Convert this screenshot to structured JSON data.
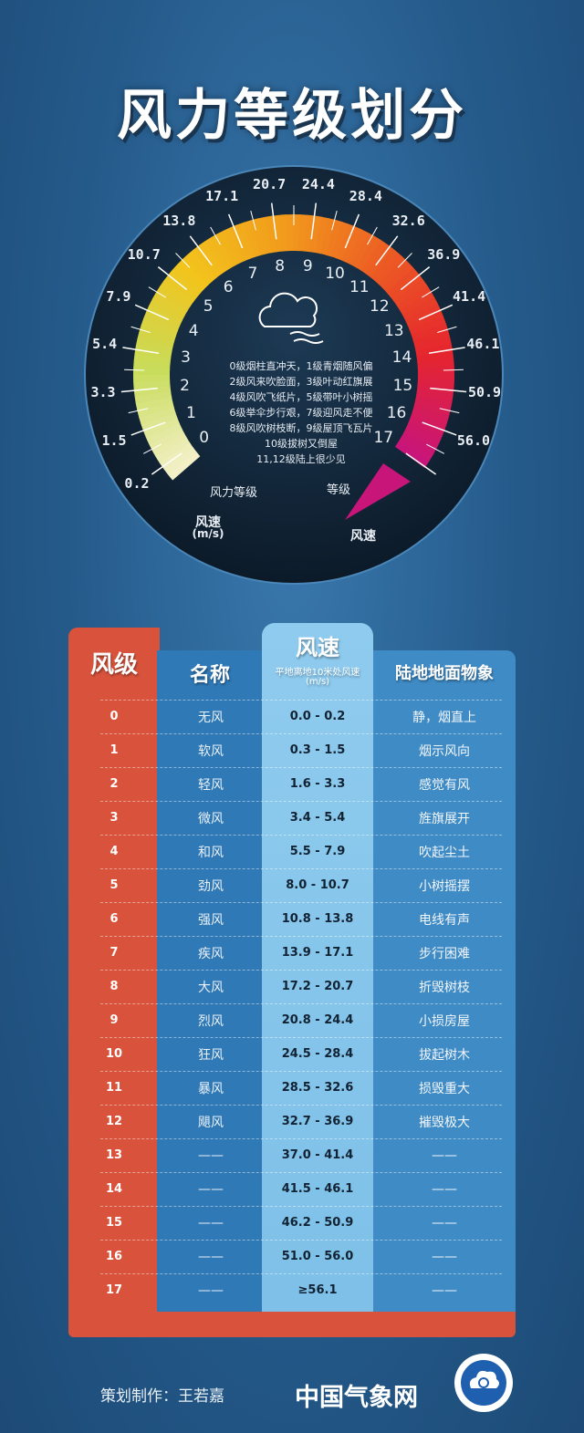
{
  "title": "风力等级划分",
  "gauge": {
    "speeds": [
      "0.2",
      "1.5",
      "3.3",
      "5.4",
      "7.9",
      "10.7",
      "13.8",
      "17.1",
      "20.7",
      "24.4",
      "28.4",
      "32.6",
      "36.9",
      "41.4",
      "46.1",
      "50.9",
      "56.0"
    ],
    "levels": [
      "0",
      "1",
      "2",
      "3",
      "4",
      "5",
      "6",
      "7",
      "8",
      "9",
      "10",
      "11",
      "12",
      "13",
      "14",
      "15",
      "16",
      "17"
    ],
    "level_label": "风力等级",
    "level_label_right": "等级",
    "speed_label": "风速",
    "speed_unit": "(m/s)",
    "speed_label_right": "风速",
    "icon": "cloud-wind-icon",
    "description": [
      "0级烟柱直冲天，1级青烟随风偏",
      "2级风来吹脸面，3级叶动红旗展",
      "4级风吹飞纸片，5级带叶小树摇",
      "6级举伞步行艰，7级迎风走不便",
      "8级风吹树枝断，9级屋顶飞瓦片",
      "10级拔树又倒屋",
      "11,12级陆上很少见"
    ],
    "colors": [
      "#f3f0c8",
      "#c8dc5a",
      "#f2c41c",
      "#f29a1c",
      "#ec5a24",
      "#e5252e",
      "#c8157a"
    ]
  },
  "table": {
    "headers": {
      "level": "风级",
      "name": "名称",
      "speed": "风速",
      "speed_sub": "平地离地10米处风速",
      "speed_unit": "(m/s)",
      "land": "陆地地面物象"
    },
    "rows": [
      [
        "0",
        "无风",
        "0.0 - 0.2",
        "静，烟直上"
      ],
      [
        "1",
        "软风",
        "0.3 - 1.5",
        "烟示风向"
      ],
      [
        "2",
        "轻风",
        "1.6 - 3.3",
        "感觉有风"
      ],
      [
        "3",
        "微风",
        "3.4 - 5.4",
        "旌旗展开"
      ],
      [
        "4",
        "和风",
        "5.5 - 7.9",
        "吹起尘土"
      ],
      [
        "5",
        "劲风",
        "8.0 - 10.7",
        "小树摇摆"
      ],
      [
        "6",
        "强风",
        "10.8 - 13.8",
        "电线有声"
      ],
      [
        "7",
        "疾风",
        "13.9 - 17.1",
        "步行困难"
      ],
      [
        "8",
        "大风",
        "17.2 - 20.7",
        "折毁树枝"
      ],
      [
        "9",
        "烈风",
        "20.8 - 24.4",
        "小损房屋"
      ],
      [
        "10",
        "狂风",
        "24.5 - 28.4",
        "拔起树木"
      ],
      [
        "11",
        "暴风",
        "28.5 - 32.6",
        "损毁重大"
      ],
      [
        "12",
        "飓风",
        "32.7 - 36.9",
        "摧毁极大"
      ],
      [
        "13",
        "——",
        "37.0 - 41.4",
        "——"
      ],
      [
        "14",
        "——",
        "41.5 - 46.1",
        "——"
      ],
      [
        "15",
        "——",
        "46.2 - 50.9",
        "——"
      ],
      [
        "16",
        "——",
        "51.0 - 56.0",
        "——"
      ],
      [
        "17",
        "——",
        "≥56.1",
        "——"
      ]
    ]
  },
  "footer": {
    "credit": "策划制作：王若嘉",
    "brand": "中国气象网",
    "logo": "cma-logo"
  }
}
